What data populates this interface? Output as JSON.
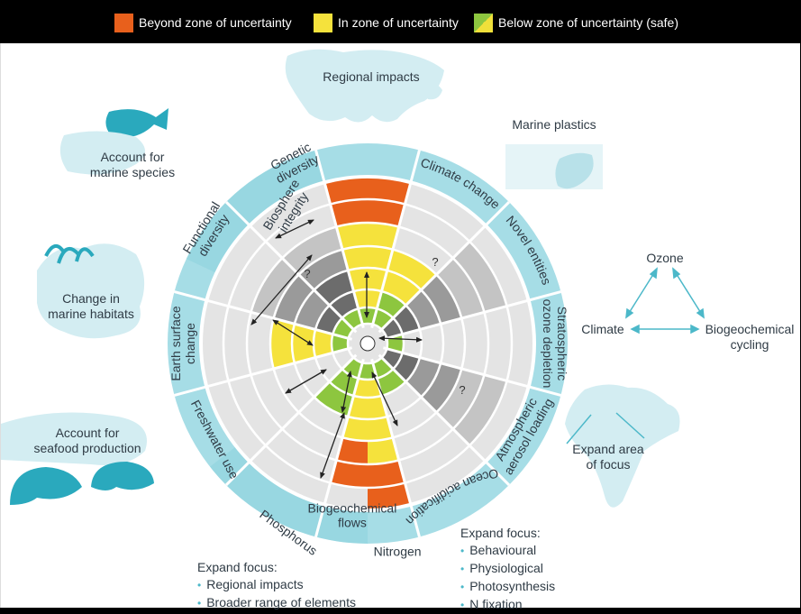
{
  "legend": {
    "beyond": "Beyond zone of uncertainty",
    "in_zone": "In zone of uncertainty",
    "below": "Below zone of uncertainty (safe)",
    "colors": {
      "beyond": "#e8601c",
      "in_zone": "#f5e23c",
      "below_a": "#8dc63f",
      "below_b": "#f0e03a"
    }
  },
  "wheel": {
    "sectors": {
      "climate": "Climate change",
      "novel": "Novel entities",
      "ozone": [
        "Stratospheric",
        "ozone depletion"
      ],
      "aerosol": [
        "Atmospheric",
        "aerosol loading"
      ],
      "ocean": "Ocean acidification",
      "biogeo": [
        "Biogeochemical",
        "flows"
      ],
      "freshwater": "Freshwater use",
      "land": [
        "Earth surface",
        "change"
      ],
      "biosphere": [
        "Biosphere",
        "integrity"
      ],
      "genetic": [
        "Genetic",
        "diversity"
      ],
      "functional": [
        "Functional",
        "diversity"
      ],
      "phosphorus": "Phosphorus",
      "nitrogen": "Nitrogen"
    },
    "unknown_mark": "?",
    "colors": {
      "ring": "#a6dde6",
      "ring_dark": "#7fcad8",
      "unknown": "#9a9a9a",
      "unknown_light": "#c4c4c4",
      "background": "#e4e4e4"
    }
  },
  "annotations": {
    "regional": "Regional impacts",
    "marine_plastics": "Marine plastics",
    "marine_species": [
      "Account for",
      "marine species"
    ],
    "marine_habitats": [
      "Change in",
      "marine habitats"
    ],
    "seafood": [
      "Account for",
      "seafood production"
    ],
    "triangle": {
      "top": "Ozone",
      "left": "Climate",
      "right": [
        "Biogeochemical",
        "cycling"
      ]
    },
    "expand_area": [
      "Expand area",
      "of focus"
    ]
  },
  "expand_left": {
    "title": "Expand focus:",
    "items": [
      "Regional impacts",
      "Broader range of elements"
    ]
  },
  "expand_right": {
    "title": "Expand focus:",
    "items": [
      "Behavioural",
      "Physiological",
      "Photosynthesis",
      "N fixation"
    ]
  }
}
